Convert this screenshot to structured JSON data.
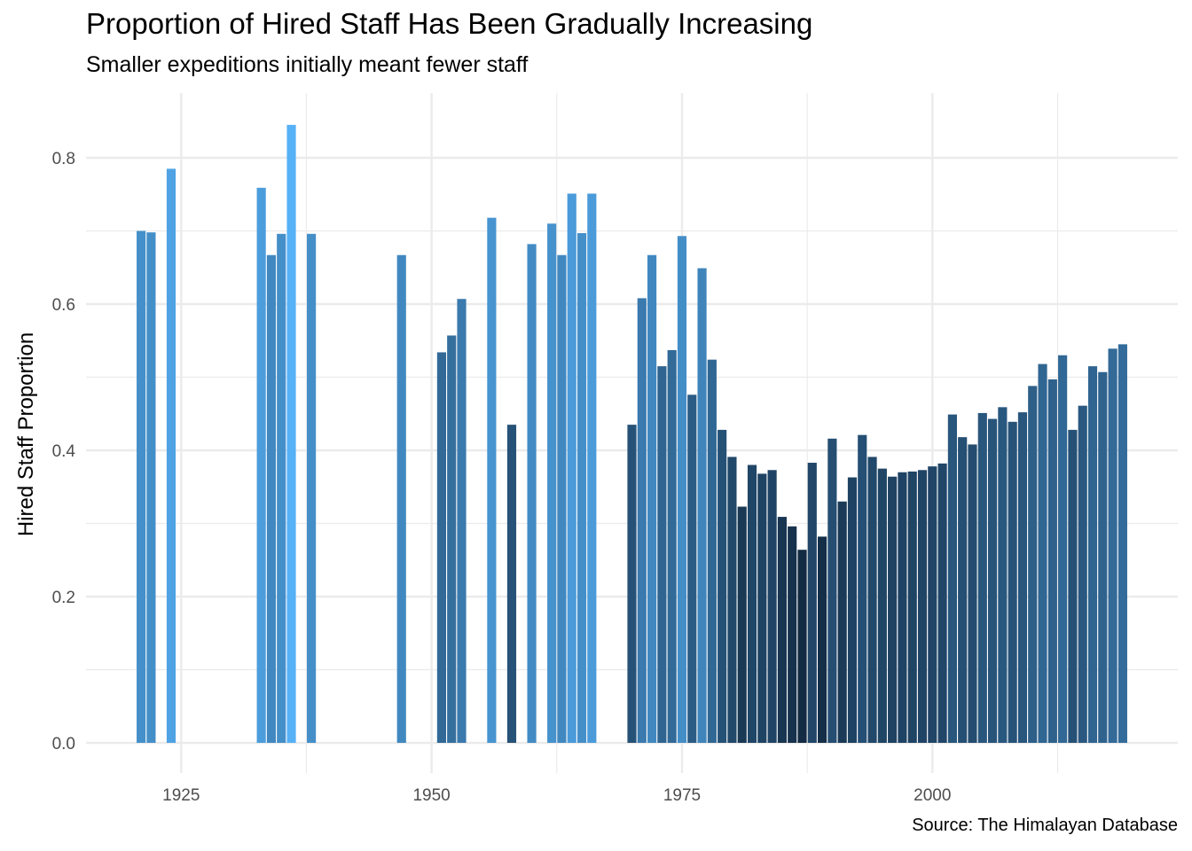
{
  "chart_data": {
    "type": "bar",
    "title": "Proportion of Hired Staff Has Been Gradually Increasing",
    "subtitle": "Smaller expeditions initially meant fewer staff",
    "caption": "Source: The Himalayan Database",
    "xlabel": "",
    "ylabel": "Hired Staff Proportion",
    "xlim": [
      1915.5,
      2024.5
    ],
    "ylim": [
      0,
      0.88
    ],
    "x_ticks": [
      "1925",
      "1950",
      "1975",
      "2000"
    ],
    "y_ticks": [
      "0.0",
      "0.2",
      "0.4",
      "0.6",
      "0.8"
    ],
    "grid": true,
    "legend": "none",
    "color_scale": {
      "low": "#132B43",
      "high": "#56B1F7",
      "mapped_to": "value"
    },
    "x": [
      1921,
      1922,
      1924,
      1933,
      1934,
      1935,
      1936,
      1938,
      1947,
      1951,
      1952,
      1953,
      1956,
      1958,
      1960,
      1962,
      1963,
      1964,
      1965,
      1966,
      1970,
      1971,
      1972,
      1973,
      1974,
      1975,
      1976,
      1977,
      1978,
      1979,
      1980,
      1981,
      1982,
      1983,
      1984,
      1985,
      1986,
      1987,
      1988,
      1989,
      1990,
      1991,
      1992,
      1993,
      1994,
      1995,
      1996,
      1997,
      1998,
      1999,
      2000,
      2001,
      2002,
      2003,
      2004,
      2005,
      2006,
      2007,
      2008,
      2009,
      2010,
      2011,
      2012,
      2013,
      2014,
      2015,
      2016,
      2017,
      2018,
      2019
    ],
    "values": [
      0.7,
      0.698,
      0.785,
      0.759,
      0.667,
      0.696,
      0.845,
      0.696,
      0.667,
      0.534,
      0.557,
      0.607,
      0.718,
      0.435,
      0.682,
      0.71,
      0.667,
      0.751,
      0.697,
      0.751,
      0.435,
      0.608,
      0.667,
      0.515,
      0.537,
      0.693,
      0.476,
      0.649,
      0.524,
      0.428,
      0.391,
      0.323,
      0.38,
      0.368,
      0.373,
      0.309,
      0.296,
      0.264,
      0.383,
      0.282,
      0.416,
      0.33,
      0.363,
      0.421,
      0.391,
      0.375,
      0.364,
      0.37,
      0.371,
      0.373,
      0.378,
      0.382,
      0.449,
      0.418,
      0.408,
      0.451,
      0.443,
      0.459,
      0.439,
      0.452,
      0.488,
      0.518,
      0.497,
      0.53,
      0.428,
      0.461,
      0.515,
      0.507,
      0.539,
      0.545
    ]
  }
}
